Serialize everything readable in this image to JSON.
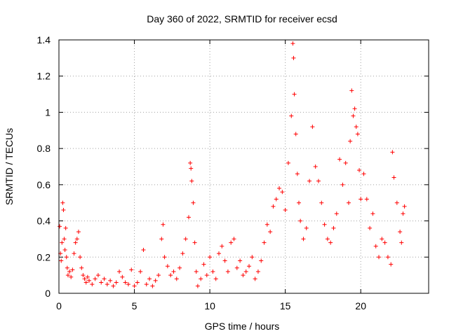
{
  "chart_data": {
    "type": "scatter",
    "title": "Day 360 of 2022, SRMTID for receiver ecsd",
    "xlabel": "GPS time / hours",
    "ylabel": "SRMTID / TECUs",
    "xlim": [
      0,
      24.5
    ],
    "ylim": [
      0,
      1.4
    ],
    "xticks": [
      0,
      5,
      10,
      15,
      20
    ],
    "yticks": [
      0,
      0.2,
      0.4,
      0.6,
      0.8,
      1,
      1.2,
      1.4
    ],
    "grid": true,
    "marker": "plus",
    "series": [
      {
        "name": "SRMTID",
        "color": "#ff0000",
        "x": [
          0.05,
          0.1,
          0.15,
          0.2,
          0.25,
          0.3,
          0.35,
          0.4,
          0.45,
          0.5,
          0.55,
          0.6,
          0.7,
          0.8,
          0.9,
          1.0,
          1.1,
          1.2,
          1.3,
          1.4,
          1.5,
          1.6,
          1.7,
          1.8,
          1.9,
          2.0,
          2.2,
          2.4,
          2.6,
          2.8,
          3.0,
          3.2,
          3.4,
          3.6,
          3.8,
          4.0,
          4.2,
          4.4,
          4.6,
          4.8,
          5.0,
          5.2,
          5.4,
          5.6,
          5.8,
          6.0,
          6.2,
          6.4,
          6.6,
          6.8,
          6.9,
          7.0,
          7.2,
          7.4,
          7.6,
          7.8,
          8.0,
          8.2,
          8.4,
          8.6,
          8.7,
          8.75,
          8.8,
          8.9,
          9.0,
          9.1,
          9.2,
          9.4,
          9.6,
          9.8,
          10.0,
          10.2,
          10.4,
          10.6,
          10.8,
          11.0,
          11.2,
          11.4,
          11.6,
          11.8,
          12.0,
          12.2,
          12.4,
          12.6,
          12.8,
          13.0,
          13.2,
          13.4,
          13.6,
          13.8,
          14.0,
          14.2,
          14.4,
          14.6,
          14.8,
          15.0,
          15.2,
          15.4,
          15.5,
          15.55,
          15.6,
          15.7,
          15.8,
          15.9,
          16.0,
          16.2,
          16.4,
          16.6,
          16.8,
          17.0,
          17.2,
          17.4,
          17.6,
          17.8,
          18.0,
          18.2,
          18.4,
          18.6,
          18.8,
          19.0,
          19.2,
          19.3,
          19.4,
          19.5,
          19.6,
          19.7,
          19.8,
          19.9,
          20.0,
          20.2,
          20.4,
          20.6,
          20.8,
          21.0,
          21.2,
          21.4,
          21.6,
          21.8,
          22.0,
          22.1,
          22.2,
          22.4,
          22.6,
          22.7,
          22.8,
          22.9
        ],
        "y": [
          0.37,
          0.22,
          0.18,
          0.28,
          0.5,
          0.46,
          0.3,
          0.24,
          0.36,
          0.2,
          0.14,
          0.1,
          0.12,
          0.09,
          0.13,
          0.22,
          0.28,
          0.3,
          0.34,
          0.2,
          0.14,
          0.1,
          0.08,
          0.06,
          0.09,
          0.07,
          0.05,
          0.08,
          0.1,
          0.06,
          0.08,
          0.05,
          0.07,
          0.04,
          0.06,
          0.12,
          0.09,
          0.06,
          0.05,
          0.13,
          0.04,
          0.06,
          0.12,
          0.24,
          0.05,
          0.08,
          0.04,
          0.07,
          0.1,
          0.3,
          0.38,
          0.2,
          0.15,
          0.1,
          0.12,
          0.08,
          0.14,
          0.22,
          0.3,
          0.42,
          0.72,
          0.69,
          0.62,
          0.5,
          0.28,
          0.12,
          0.04,
          0.08,
          0.16,
          0.1,
          0.2,
          0.12,
          0.08,
          0.22,
          0.26,
          0.18,
          0.12,
          0.28,
          0.3,
          0.14,
          0.18,
          0.1,
          0.12,
          0.15,
          0.2,
          0.08,
          0.12,
          0.18,
          0.28,
          0.38,
          0.34,
          0.48,
          0.52,
          0.58,
          0.56,
          0.46,
          0.72,
          0.98,
          1.38,
          1.3,
          1.1,
          0.88,
          0.66,
          0.5,
          0.4,
          0.3,
          0.36,
          0.62,
          0.92,
          0.7,
          0.62,
          0.5,
          0.38,
          0.3,
          0.28,
          0.36,
          0.44,
          0.74,
          0.6,
          0.72,
          0.5,
          0.84,
          1.12,
          0.98,
          1.02,
          0.92,
          0.88,
          0.68,
          0.52,
          0.66,
          0.52,
          0.36,
          0.44,
          0.26,
          0.2,
          0.3,
          0.28,
          0.2,
          0.16,
          0.78,
          0.64,
          0.5,
          0.34,
          0.28,
          0.44,
          0.48
        ]
      }
    ]
  }
}
